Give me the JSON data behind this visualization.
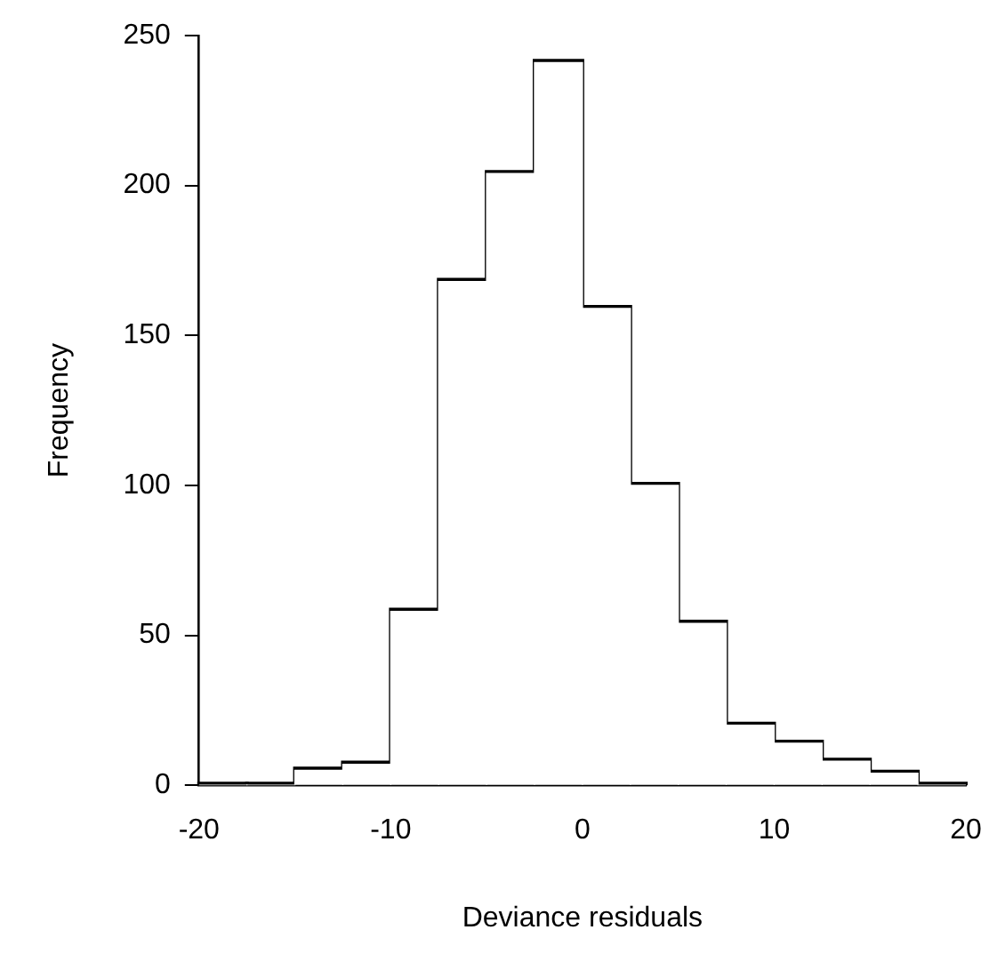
{
  "chart_data": {
    "type": "histogram",
    "xlabel": "Deviance residuals",
    "ylabel": "Frequency",
    "bins": [
      -20,
      -17.5,
      -15,
      -12.5,
      -10,
      -7.5,
      -5,
      -2.5,
      0,
      2.5,
      5,
      7.5,
      10,
      12.5,
      15,
      17.5,
      20
    ],
    "values": [
      0,
      0,
      5,
      7,
      58,
      168,
      204,
      241,
      159,
      100,
      54,
      20,
      14,
      8,
      4,
      0
    ],
    "color": "#ffffff",
    "xlim": [
      -20,
      20
    ],
    "xticks": [
      -20,
      -10,
      0,
      10,
      20
    ],
    "ylim": [
      0,
      250
    ],
    "yticks": [
      0,
      50,
      100,
      150,
      200,
      250
    ],
    "grid": false,
    "legend": false
  }
}
